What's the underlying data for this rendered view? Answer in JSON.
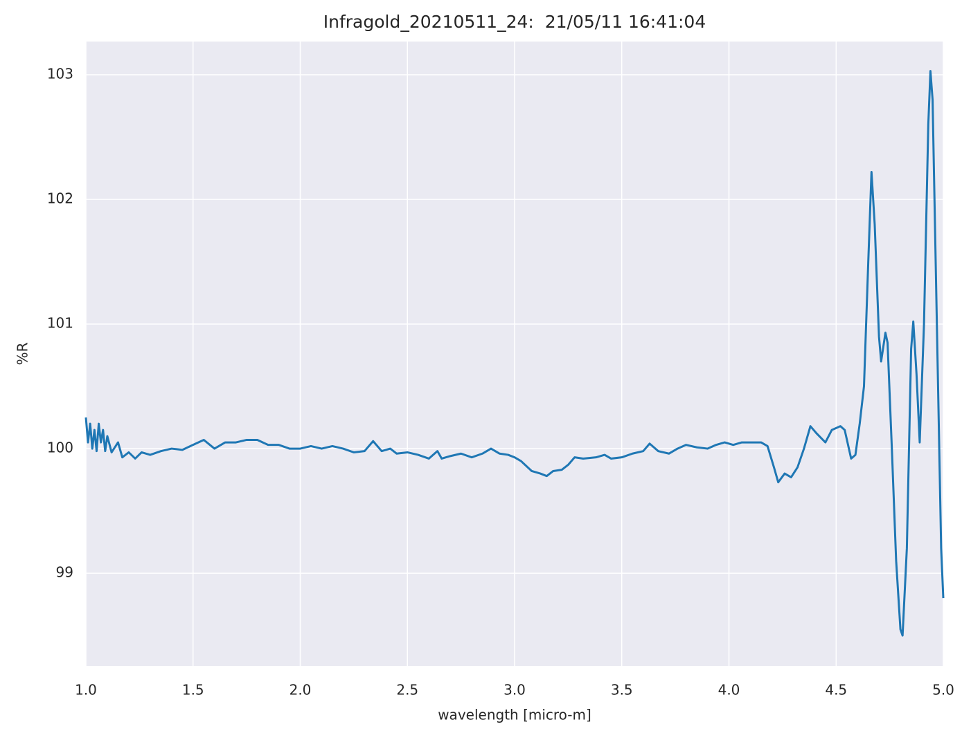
{
  "chart_data": {
    "type": "line",
    "title": "Infragold_20210511_24:  21/05/11 16:41:04",
    "x_label": "wavelength [micro-m]",
    "y_label": "%R",
    "color": "#1f77b4",
    "grid": true,
    "x": [
      1.0,
      1.01,
      1.02,
      1.03,
      1.04,
      1.05,
      1.06,
      1.07,
      1.08,
      1.09,
      1.1,
      1.12,
      1.15,
      1.17,
      1.2,
      1.23,
      1.26,
      1.3,
      1.35,
      1.4,
      1.45,
      1.5,
      1.55,
      1.6,
      1.65,
      1.7,
      1.75,
      1.8,
      1.85,
      1.9,
      1.95,
      2.0,
      2.05,
      2.1,
      2.15,
      2.2,
      2.25,
      2.3,
      2.34,
      2.38,
      2.42,
      2.45,
      2.5,
      2.55,
      2.6,
      2.64,
      2.66,
      2.7,
      2.75,
      2.8,
      2.85,
      2.89,
      2.93,
      2.97,
      3.0,
      3.03,
      3.08,
      3.12,
      3.15,
      3.18,
      3.22,
      3.25,
      3.28,
      3.32,
      3.38,
      3.42,
      3.45,
      3.5,
      3.55,
      3.6,
      3.63,
      3.67,
      3.72,
      3.76,
      3.8,
      3.85,
      3.9,
      3.94,
      3.98,
      4.02,
      4.06,
      4.1,
      4.15,
      4.18,
      4.21,
      4.23,
      4.26,
      4.29,
      4.32,
      4.35,
      4.38,
      4.41,
      4.45,
      4.48,
      4.52,
      4.54,
      4.57,
      4.59,
      4.61,
      4.63,
      4.65,
      4.665,
      4.68,
      4.7,
      4.71,
      4.73,
      4.74,
      4.76,
      4.78,
      4.8,
      4.81,
      4.83,
      4.85,
      4.86,
      4.875,
      4.89,
      4.91,
      4.93,
      4.94,
      4.95,
      4.97,
      4.99,
      5.0
    ],
    "values": [
      100.25,
      100.05,
      100.2,
      100.0,
      100.15,
      99.98,
      100.2,
      100.05,
      100.15,
      99.98,
      100.1,
      99.97,
      100.05,
      99.93,
      99.97,
      99.92,
      99.97,
      99.95,
      99.98,
      100.0,
      99.99,
      100.03,
      100.07,
      100.0,
      100.05,
      100.05,
      100.07,
      100.07,
      100.03,
      100.03,
      100.0,
      100.0,
      100.02,
      100.0,
      100.02,
      100.0,
      99.97,
      99.98,
      100.06,
      99.98,
      100.0,
      99.96,
      99.97,
      99.95,
      99.92,
      99.98,
      99.92,
      99.94,
      99.96,
      99.93,
      99.96,
      100.0,
      99.96,
      99.95,
      99.93,
      99.9,
      99.82,
      99.8,
      99.78,
      99.82,
      99.83,
      99.87,
      99.93,
      99.92,
      99.93,
      99.95,
      99.92,
      99.93,
      99.96,
      99.98,
      100.04,
      99.98,
      99.96,
      100.0,
      100.03,
      100.01,
      100.0,
      100.03,
      100.05,
      100.03,
      100.05,
      100.05,
      100.05,
      100.02,
      99.85,
      99.73,
      99.8,
      99.77,
      99.85,
      100.0,
      100.18,
      100.12,
      100.05,
      100.15,
      100.18,
      100.15,
      99.92,
      99.95,
      100.2,
      100.5,
      101.5,
      102.22,
      101.8,
      100.9,
      100.7,
      100.93,
      100.85,
      100.0,
      99.1,
      98.55,
      98.5,
      99.2,
      100.8,
      101.02,
      100.6,
      100.05,
      101.0,
      102.6,
      103.03,
      102.8,
      101.0,
      99.2,
      98.8
    ],
    "xlim": [
      1,
      5
    ],
    "xticks": [
      {
        "value": 1,
        "label": "1.0"
      },
      1.5,
      {
        "value": 2,
        "label": "2.0"
      },
      2.5,
      {
        "value": 3,
        "label": "3.0"
      },
      3.5,
      {
        "value": 4,
        "label": "4.0"
      },
      4.5,
      {
        "value": 5,
        "label": "5.0"
      }
    ],
    "ylim": [
      98.256,
      103.267
    ],
    "yticks": [
      99,
      100,
      101,
      102,
      103
    ]
  }
}
